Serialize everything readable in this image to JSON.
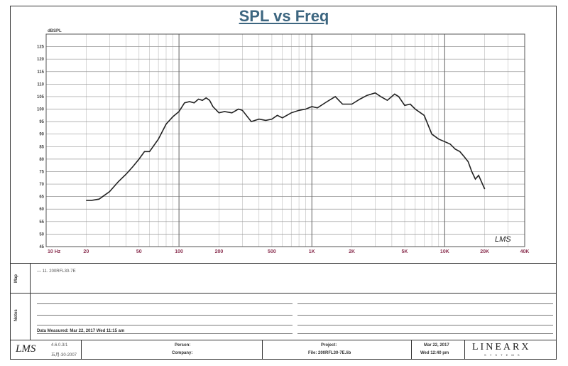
{
  "chart_data": {
    "type": "line",
    "title": "SPL vs Freq",
    "ylabel": "dBSPL",
    "xscale": "log",
    "xlim": [
      10,
      40000
    ],
    "ylim": [
      45,
      130
    ],
    "grid": true,
    "x_ticks": [
      10,
      20,
      50,
      100,
      200,
      500,
      1000,
      2000,
      5000,
      10000,
      20000,
      40000
    ],
    "x_tick_labels": [
      "10 Hz",
      "20",
      "50",
      "100",
      "200",
      "500",
      "1K",
      "2K",
      "5K",
      "10K",
      "20K",
      "40K"
    ],
    "y_ticks": [
      45,
      50,
      55,
      60,
      65,
      70,
      75,
      80,
      85,
      90,
      95,
      100,
      105,
      110,
      115,
      120,
      125
    ],
    "series": [
      {
        "name": "200RFL30-7E",
        "color": "#222222",
        "x": [
          20,
          22,
          25,
          30,
          35,
          40,
          45,
          50,
          55,
          60,
          70,
          80,
          90,
          100,
          110,
          120,
          130,
          140,
          150,
          160,
          170,
          180,
          200,
          220,
          250,
          280,
          300,
          350,
          400,
          450,
          500,
          550,
          600,
          700,
          800,
          900,
          1000,
          1100,
          1300,
          1500,
          1700,
          2000,
          2300,
          2600,
          3000,
          3300,
          3700,
          4200,
          4500,
          5000,
          5500,
          6000,
          7000,
          8000,
          9000,
          10000,
          11000,
          12000,
          13000,
          14000,
          15000,
          16000,
          17000,
          18000,
          20000
        ],
        "y": [
          63.5,
          63.5,
          64,
          67,
          71,
          74,
          77,
          80,
          83,
          83,
          88,
          94,
          97,
          99,
          102.5,
          103,
          102.5,
          104,
          103.5,
          104.5,
          103.5,
          101,
          98.5,
          99,
          98.5,
          100,
          99.5,
          95,
          96,
          95.5,
          96,
          97.5,
          96.5,
          98.5,
          99.5,
          100,
          101,
          100.5,
          103,
          105,
          102,
          102,
          104,
          105.5,
          106.5,
          105,
          103.5,
          106,
          105,
          101.5,
          102,
          100,
          97.5,
          90,
          88,
          87,
          86,
          84,
          83,
          81,
          79,
          75,
          72,
          73.5,
          68
        ]
      }
    ]
  },
  "legend": {
    "entry": "— 11. 200RFL30-7E"
  },
  "section_labels": {
    "map": "Map",
    "notes": "Notes"
  },
  "notes": {
    "date_measured": "Data Measured: Mar 22, 2017 Wed 11:15 am"
  },
  "logo_graph": "LMS",
  "footer": {
    "logo": "LMS",
    "version": "4.6.0.3/1",
    "date_code": "五月-30-2007",
    "person_label": "Person:",
    "company_label": "Company:",
    "project_label": "Project:",
    "file_label": "File: 200RFL30-7E.lib",
    "date": "Mar 22, 2017",
    "time": "Wed 12:40 pm",
    "brand": "LINEARX",
    "brand_sub": "S Y S T E M S"
  }
}
